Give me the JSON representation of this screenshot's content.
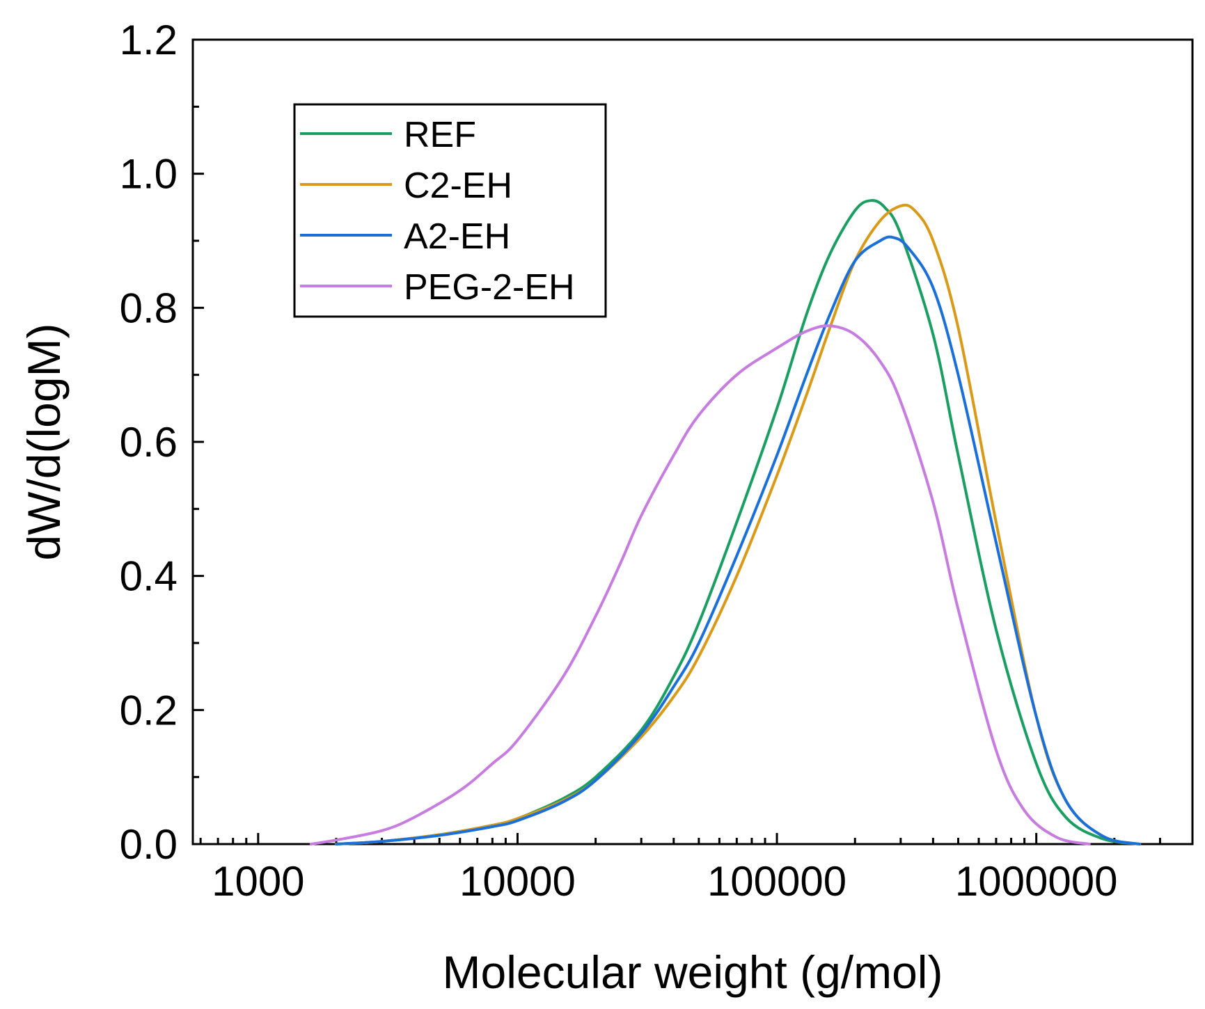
{
  "chart_data": {
    "type": "line",
    "title": "",
    "xlabel": "Molecular weight (g/mol)",
    "ylabel": "dW/d(logM)",
    "xscale": "log",
    "xlim": [
      560,
      4000000
    ],
    "ylim": [
      0.0,
      1.2
    ],
    "xticks": [
      1000,
      10000,
      100000,
      1000000
    ],
    "xtick_labels": [
      "1000",
      "10000",
      "100000",
      "1000000"
    ],
    "yticks": [
      0.0,
      0.2,
      0.4,
      0.6,
      0.8,
      1.0,
      1.2
    ],
    "ytick_labels": [
      "0.0",
      "0.2",
      "0.4",
      "0.6",
      "0.8",
      "1.0",
      "1.2"
    ],
    "legend_position": "top-left",
    "grid": false,
    "series": [
      {
        "name": "REF",
        "color": "#1a9e62",
        "points": [
          [
            2000,
            0.0
          ],
          [
            3000,
            0.004
          ],
          [
            5000,
            0.014
          ],
          [
            8000,
            0.028
          ],
          [
            10000,
            0.038
          ],
          [
            15000,
            0.068
          ],
          [
            20000,
            0.1
          ],
          [
            30000,
            0.17
          ],
          [
            40000,
            0.25
          ],
          [
            50000,
            0.33
          ],
          [
            70000,
            0.48
          ],
          [
            100000,
            0.65
          ],
          [
            130000,
            0.79
          ],
          [
            160000,
            0.88
          ],
          [
            200000,
            0.945
          ],
          [
            230000,
            0.96
          ],
          [
            260000,
            0.95
          ],
          [
            300000,
            0.91
          ],
          [
            400000,
            0.76
          ],
          [
            500000,
            0.58
          ],
          [
            700000,
            0.32
          ],
          [
            1000000,
            0.12
          ],
          [
            1300000,
            0.04
          ],
          [
            1800000,
            0.008
          ],
          [
            2500000,
            0.0
          ]
        ]
      },
      {
        "name": "C2-EH",
        "color": "#d99a1a",
        "points": [
          [
            2000,
            0.0
          ],
          [
            3000,
            0.004
          ],
          [
            5000,
            0.014
          ],
          [
            8000,
            0.028
          ],
          [
            10000,
            0.038
          ],
          [
            15000,
            0.065
          ],
          [
            20000,
            0.095
          ],
          [
            30000,
            0.16
          ],
          [
            40000,
            0.22
          ],
          [
            50000,
            0.28
          ],
          [
            70000,
            0.4
          ],
          [
            100000,
            0.55
          ],
          [
            130000,
            0.67
          ],
          [
            160000,
            0.77
          ],
          [
            200000,
            0.87
          ],
          [
            250000,
            0.93
          ],
          [
            300000,
            0.952
          ],
          [
            340000,
            0.945
          ],
          [
            400000,
            0.9
          ],
          [
            500000,
            0.77
          ],
          [
            700000,
            0.48
          ],
          [
            1000000,
            0.19
          ],
          [
            1300000,
            0.065
          ],
          [
            1800000,
            0.012
          ],
          [
            2500000,
            0.0
          ]
        ]
      },
      {
        "name": "A2-EH",
        "color": "#1a6fd9",
        "points": [
          [
            2000,
            0.0
          ],
          [
            3000,
            0.004
          ],
          [
            5000,
            0.013
          ],
          [
            8000,
            0.026
          ],
          [
            10000,
            0.035
          ],
          [
            15000,
            0.063
          ],
          [
            20000,
            0.095
          ],
          [
            30000,
            0.165
          ],
          [
            40000,
            0.235
          ],
          [
            50000,
            0.3
          ],
          [
            70000,
            0.43
          ],
          [
            100000,
            0.58
          ],
          [
            130000,
            0.7
          ],
          [
            160000,
            0.79
          ],
          [
            200000,
            0.87
          ],
          [
            250000,
            0.9
          ],
          [
            280000,
            0.905
          ],
          [
            320000,
            0.89
          ],
          [
            400000,
            0.83
          ],
          [
            500000,
            0.7
          ],
          [
            700000,
            0.45
          ],
          [
            1000000,
            0.19
          ],
          [
            1300000,
            0.065
          ],
          [
            1800000,
            0.012
          ],
          [
            2500000,
            0.0
          ]
        ]
      },
      {
        "name": "PEG-2-EH",
        "color": "#c77ce0",
        "points": [
          [
            1600,
            0.0
          ],
          [
            2000,
            0.006
          ],
          [
            3000,
            0.02
          ],
          [
            4000,
            0.04
          ],
          [
            6000,
            0.08
          ],
          [
            8000,
            0.12
          ],
          [
            10000,
            0.155
          ],
          [
            15000,
            0.25
          ],
          [
            20000,
            0.34
          ],
          [
            25000,
            0.42
          ],
          [
            30000,
            0.49
          ],
          [
            40000,
            0.58
          ],
          [
            50000,
            0.64
          ],
          [
            70000,
            0.7
          ],
          [
            100000,
            0.74
          ],
          [
            130000,
            0.765
          ],
          [
            160000,
            0.773
          ],
          [
            200000,
            0.76
          ],
          [
            250000,
            0.72
          ],
          [
            300000,
            0.66
          ],
          [
            400000,
            0.51
          ],
          [
            500000,
            0.35
          ],
          [
            700000,
            0.14
          ],
          [
            900000,
            0.05
          ],
          [
            1200000,
            0.01
          ],
          [
            1600000,
            0.0
          ]
        ]
      }
    ]
  }
}
